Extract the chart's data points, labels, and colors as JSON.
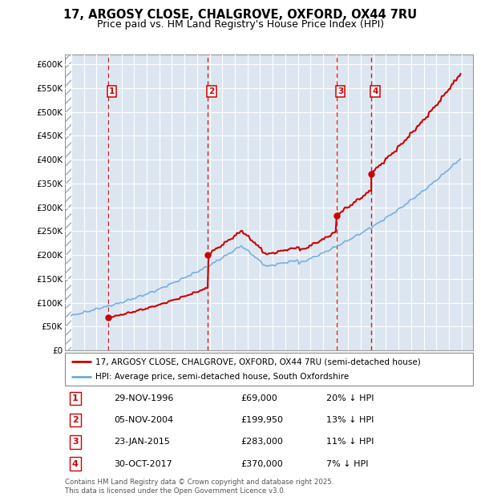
{
  "title1": "17, ARGOSY CLOSE, CHALGROVE, OXFORD, OX44 7RU",
  "title2": "Price paid vs. HM Land Registry's House Price Index (HPI)",
  "ylabel_ticks": [
    "£0",
    "£50K",
    "£100K",
    "£150K",
    "£200K",
    "£250K",
    "£300K",
    "£350K",
    "£400K",
    "£450K",
    "£500K",
    "£550K",
    "£600K"
  ],
  "ytick_values": [
    0,
    50000,
    100000,
    150000,
    200000,
    250000,
    300000,
    350000,
    400000,
    450000,
    500000,
    550000,
    600000
  ],
  "xlim": [
    1993.5,
    2025.9
  ],
  "ylim": [
    0,
    620000
  ],
  "purchases": [
    {
      "date_dec": 1996.91,
      "price": 69000,
      "label": "1"
    },
    {
      "date_dec": 2004.84,
      "price": 199950,
      "label": "2"
    },
    {
      "date_dec": 2015.06,
      "price": 283000,
      "label": "3"
    },
    {
      "date_dec": 2017.83,
      "price": 370000,
      "label": "4"
    }
  ],
  "vlines_x": [
    1996.91,
    2004.84,
    2015.06,
    2017.83
  ],
  "legend_property_label": "17, ARGOSY CLOSE, CHALGROVE, OXFORD, OX44 7RU (semi-detached house)",
  "legend_hpi_label": "HPI: Average price, semi-detached house, South Oxfordshire",
  "table_rows": [
    {
      "num": "1",
      "date": "29-NOV-1996",
      "price": "£69,000",
      "pct": "20% ↓ HPI"
    },
    {
      "num": "2",
      "date": "05-NOV-2004",
      "price": "£199,950",
      "pct": "13% ↓ HPI"
    },
    {
      "num": "3",
      "date": "23-JAN-2015",
      "price": "£283,000",
      "pct": "11% ↓ HPI"
    },
    {
      "num": "4",
      "date": "30-OCT-2017",
      "price": "£370,000",
      "pct": "7% ↓ HPI"
    }
  ],
  "footnote": "Contains HM Land Registry data © Crown copyright and database right 2025.\nThis data is licensed under the Open Government Licence v3.0.",
  "hpi_color": "#6fa8dc",
  "price_color": "#cc0000",
  "vline_color": "#cc0000",
  "grid_color": "#cccccc",
  "bg_color": "#dce6f1"
}
